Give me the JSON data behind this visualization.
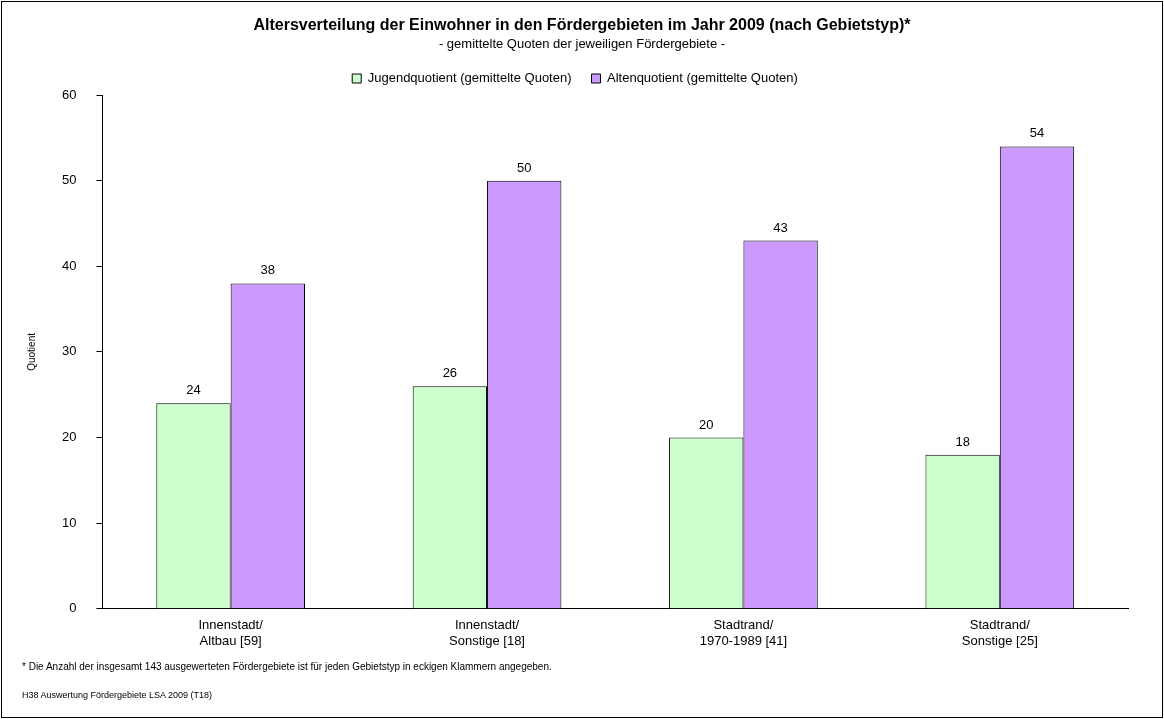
{
  "chart_data": {
    "type": "bar",
    "title": "Altersverteilung der Einwohner in den Fördergebieten im Jahr 2009 (nach Gebietstyp)*",
    "subtitle": "- gemittelte Quoten der jeweiligen Fördergebiete -",
    "ylabel": "Quotient",
    "categories": [
      "Innenstadt/\nAltbau [59]",
      "Innenstadt/\nSonstige [18]",
      "Stadtrand/\n1970-1989 [41]",
      "Stadtrand/\nSonstige [25]"
    ],
    "series": [
      {
        "name": "Jugendquotient (gemittelte Quoten)",
        "color": "#ccffcc",
        "values": [
          24,
          26,
          20,
          18
        ]
      },
      {
        "name": "Altenquotient (gemittelte Quoten)",
        "color": "#cc99ff",
        "values": [
          38,
          50,
          43,
          54
        ]
      }
    ],
    "ylim": [
      0,
      60
    ],
    "yticks": [
      0,
      10,
      20,
      30,
      40,
      50,
      60
    ],
    "grid": false,
    "legend": "top",
    "data_labels": true,
    "annotations": [
      "* Die Anzahl der insgesamt 143 ausgewerteten Fördergebiete ist für jeden Gebietstyp in eckigen Klammern angegeben.",
      "H38 Auswertung Fördergebiete LSA 2009 (T18)"
    ]
  }
}
